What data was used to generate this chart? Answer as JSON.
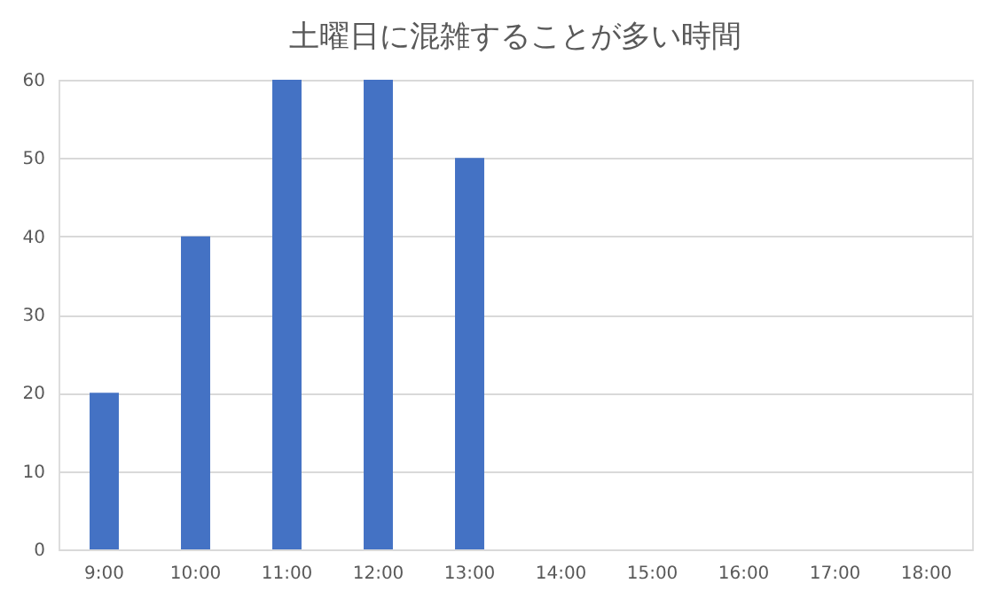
{
  "chart_data": {
    "type": "bar",
    "title": "土曜日に混雑することが多い時間",
    "categories": [
      "9:00",
      "10:00",
      "11:00",
      "12:00",
      "13:00",
      "14:00",
      "15:00",
      "16:00",
      "17:00",
      "18:00"
    ],
    "values": [
      20,
      40,
      60,
      60,
      50,
      0,
      0,
      0,
      0,
      0
    ],
    "color": "#4472c4",
    "ylim": [
      0,
      60
    ],
    "yticks": [
      0,
      10,
      20,
      30,
      40,
      50,
      60
    ],
    "grid": "y"
  }
}
